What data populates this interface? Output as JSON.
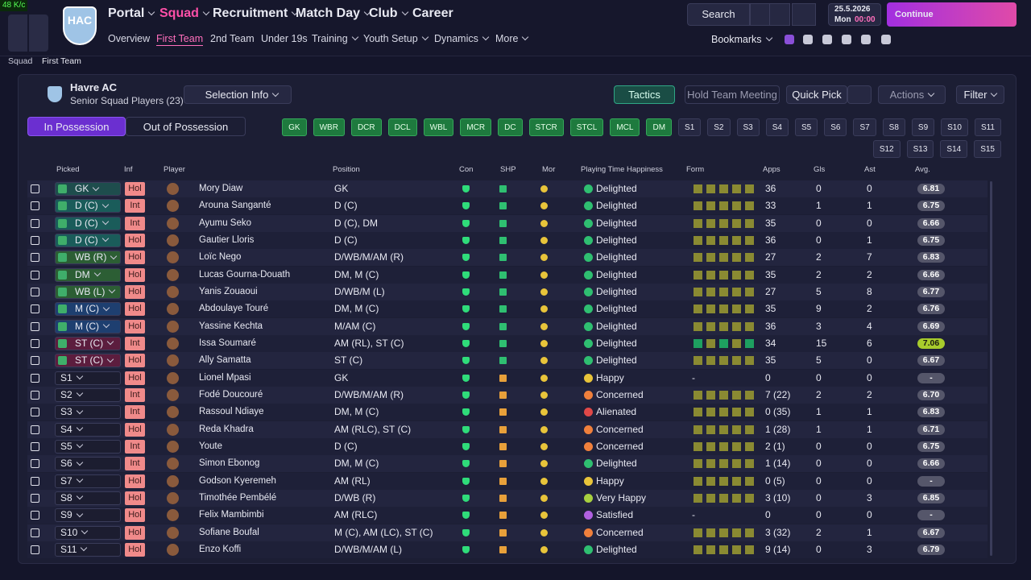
{
  "status": "48 K/c",
  "club_badge": "HAC",
  "nav": {
    "main": [
      "Portal",
      "Squad",
      "Recruitment",
      "Match Day",
      "Club",
      "Career"
    ],
    "main_active": 1,
    "sub": [
      "Overview",
      "First Team",
      "2nd Team",
      "Under 19s",
      "Training",
      "Youth Setup",
      "Dynamics",
      "More"
    ],
    "sub_active": 1
  },
  "search": "Search",
  "date": "25.5.2026",
  "day": "Mon",
  "time": "00:00",
  "continue": "Continue",
  "bookmarks": "Bookmarks",
  "breadcrumb": [
    "Squad",
    "First Team"
  ],
  "header": {
    "team": "Havre AC",
    "subtitle": "Senior Squad Players (23)",
    "selection_info": "Selection Info",
    "tactics": "Tactics",
    "meeting": "Hold Team Meeting",
    "quick_pick": "Quick Pick",
    "actions": "Actions",
    "filter": "Filter"
  },
  "toggle": [
    "In Possession",
    "Out of Possession"
  ],
  "position_chips": {
    "assigned": [
      "GK",
      "WBR",
      "DCR",
      "DCL",
      "WBL",
      "MCR",
      "DC",
      "STCR",
      "STCL",
      "MCL",
      "DM"
    ],
    "subs": [
      "S1",
      "S2",
      "S3",
      "S4",
      "S5",
      "S6",
      "S7",
      "S8",
      "S9",
      "S10",
      "S11",
      "S12",
      "S13",
      "S14",
      "S15"
    ]
  },
  "table": {
    "columns": [
      "Picked",
      "Inf",
      "Player",
      "Position",
      "Con",
      "SHP",
      "Mor",
      "Playing Time Happiness",
      "Form",
      "Apps",
      "Gls",
      "Ast",
      "Avg."
    ],
    "rows": [
      {
        "picked": "GK",
        "picked_color": "#1e4d4d",
        "inf": "Hol",
        "player": "Mory Diaw",
        "position": "GK",
        "happiness": "Delighted",
        "mood_color": "#2fbf71",
        "apps": "36",
        "gls": "0",
        "ast": "0",
        "avg": "6.81"
      },
      {
        "picked": "D (C)",
        "picked_color": "#1a5c5a",
        "inf": "Int",
        "player": "Arouna Sanganté",
        "position": "D (C)",
        "happiness": "Delighted",
        "mood_color": "#2fbf71",
        "apps": "33",
        "gls": "1",
        "ast": "1",
        "avg": "6.75"
      },
      {
        "picked": "D (C)",
        "picked_color": "#1a5c5a",
        "inf": "Int",
        "player": "Ayumu Seko",
        "position": "D (C), DM",
        "happiness": "Delighted",
        "mood_color": "#2fbf71",
        "apps": "35",
        "gls": "0",
        "ast": "0",
        "avg": "6.66"
      },
      {
        "picked": "D (C)",
        "picked_color": "#1a5c5a",
        "inf": "Hol",
        "player": "Gautier Lloris",
        "position": "D (C)",
        "happiness": "Delighted",
        "mood_color": "#2fbf71",
        "apps": "36",
        "gls": "0",
        "ast": "1",
        "avg": "6.75"
      },
      {
        "picked": "WB (R)",
        "picked_color": "#2c5e34",
        "inf": "Hol",
        "player": "Loïc Nego",
        "position": "D/WB/M/AM (R)",
        "happiness": "Delighted",
        "mood_color": "#2fbf71",
        "apps": "27",
        "gls": "2",
        "ast": "7",
        "avg": "6.83"
      },
      {
        "picked": "DM",
        "picked_color": "#2c5e34",
        "inf": "Hol",
        "player": "Lucas Gourna-Douath",
        "position": "DM, M (C)",
        "happiness": "Delighted",
        "mood_color": "#2fbf71",
        "apps": "35",
        "gls": "2",
        "ast": "2",
        "avg": "6.66"
      },
      {
        "picked": "WB (L)",
        "picked_color": "#2c5e34",
        "inf": "Hol",
        "player": "Yanis Zouaoui",
        "position": "D/WB/M (L)",
        "happiness": "Delighted",
        "mood_color": "#2fbf71",
        "apps": "27",
        "gls": "5",
        "ast": "8",
        "avg": "6.77"
      },
      {
        "picked": "M (C)",
        "picked_color": "#1e3f70",
        "inf": "Hol",
        "player": "Abdoulaye Touré",
        "position": "DM, M (C)",
        "happiness": "Delighted",
        "mood_color": "#2fbf71",
        "apps": "35",
        "gls": "9",
        "ast": "2",
        "avg": "6.76"
      },
      {
        "picked": "M (C)",
        "picked_color": "#1e3f70",
        "inf": "Hol",
        "player": "Yassine Kechta",
        "position": "M/AM (C)",
        "happiness": "Delighted",
        "mood_color": "#2fbf71",
        "apps": "36",
        "gls": "3",
        "ast": "4",
        "avg": "6.69"
      },
      {
        "picked": "ST (C)",
        "picked_color": "#5c1d3e",
        "inf": "Int",
        "player": "Issa Soumaré",
        "position": "AM (RL), ST (C)",
        "happiness": "Delighted",
        "mood_color": "#2fbf71",
        "apps": "34",
        "gls": "15",
        "ast": "6",
        "avg": "7.06",
        "avg_color": "#a8cc2c"
      },
      {
        "picked": "ST (C)",
        "picked_color": "#5c1d3e",
        "inf": "Hol",
        "player": "Ally Samatta",
        "position": "ST (C)",
        "happiness": "Delighted",
        "mood_color": "#2fbf71",
        "apps": "35",
        "gls": "5",
        "ast": "0",
        "avg": "6.67"
      },
      {
        "picked": "S1",
        "picked_color": "#1c1d30",
        "inf": "Hol",
        "player": "Lionel Mpasi",
        "position": "GK",
        "happiness": "Happy",
        "mood_color": "#e8c43a",
        "form": "-",
        "apps": "0",
        "gls": "0",
        "ast": "0",
        "avg": "-"
      },
      {
        "picked": "S2",
        "picked_color": "#1c1d30",
        "inf": "Int",
        "player": "Fodé Doucouré",
        "position": "D/WB/M/AM (R)",
        "happiness": "Concerned",
        "mood_color": "#f0803c",
        "apps": "7 (22)",
        "gls": "2",
        "ast": "2",
        "avg": "6.70"
      },
      {
        "picked": "S3",
        "picked_color": "#1c1d30",
        "inf": "Int",
        "player": "Rassoul Ndiaye",
        "position": "DM, M (C)",
        "happiness": "Alienated",
        "mood_color": "#e04848",
        "apps": "0 (35)",
        "gls": "1",
        "ast": "1",
        "avg": "6.83"
      },
      {
        "picked": "S4",
        "picked_color": "#1c1d30",
        "inf": "Hol",
        "player": "Reda Khadra",
        "position": "AM (RLC), ST (C)",
        "happiness": "Concerned",
        "mood_color": "#f0803c",
        "apps": "1 (28)",
        "gls": "1",
        "ast": "1",
        "avg": "6.71"
      },
      {
        "picked": "S5",
        "picked_color": "#1c1d30",
        "inf": "Int",
        "player": "Youte",
        "position": "D (C)",
        "happiness": "Concerned",
        "mood_color": "#f0803c",
        "apps": "2 (1)",
        "gls": "0",
        "ast": "0",
        "avg": "6.75"
      },
      {
        "picked": "S6",
        "picked_color": "#1c1d30",
        "inf": "Int",
        "player": "Simon Ebonog",
        "position": "DM, M (C)",
        "happiness": "Delighted",
        "mood_color": "#2fbf71",
        "apps": "1 (14)",
        "gls": "0",
        "ast": "0",
        "avg": "6.66"
      },
      {
        "picked": "S7",
        "picked_color": "#1c1d30",
        "inf": "Hol",
        "player": "Godson Kyeremeh",
        "position": "AM (RL)",
        "happiness": "Happy",
        "mood_color": "#e8c43a",
        "apps": "0 (5)",
        "gls": "0",
        "ast": "0",
        "avg": "-"
      },
      {
        "picked": "S8",
        "picked_color": "#1c1d30",
        "inf": "Hol",
        "player": "Timothée Pembélé",
        "position": "D/WB (R)",
        "happiness": "Very Happy",
        "mood_color": "#a8d040",
        "apps": "3 (10)",
        "gls": "0",
        "ast": "3",
        "avg": "6.85"
      },
      {
        "picked": "S9",
        "picked_color": "#1c1d30",
        "inf": "Hol",
        "player": "Felix Mambimbi",
        "position": "AM (RLC)",
        "happiness": "Satisfied",
        "mood_color": "#b060e0",
        "form": "-",
        "apps": "0",
        "gls": "0",
        "ast": "0",
        "avg": "-"
      },
      {
        "picked": "S10",
        "picked_color": "#1c1d30",
        "inf": "Hol",
        "player": "Sofiane Boufal",
        "position": "M (C), AM (LC), ST (C)",
        "happiness": "Concerned",
        "mood_color": "#f0803c",
        "apps": "3 (32)",
        "gls": "2",
        "ast": "1",
        "avg": "6.67"
      },
      {
        "picked": "S11",
        "picked_color": "#1c1d30",
        "inf": "Hol",
        "player": "Enzo Koffi",
        "position": "D/WB/M/AM (L)",
        "happiness": "Delighted",
        "mood_color": "#2fbf71",
        "apps": "9 (14)",
        "gls": "0",
        "ast": "3",
        "avg": "6.79"
      }
    ]
  }
}
